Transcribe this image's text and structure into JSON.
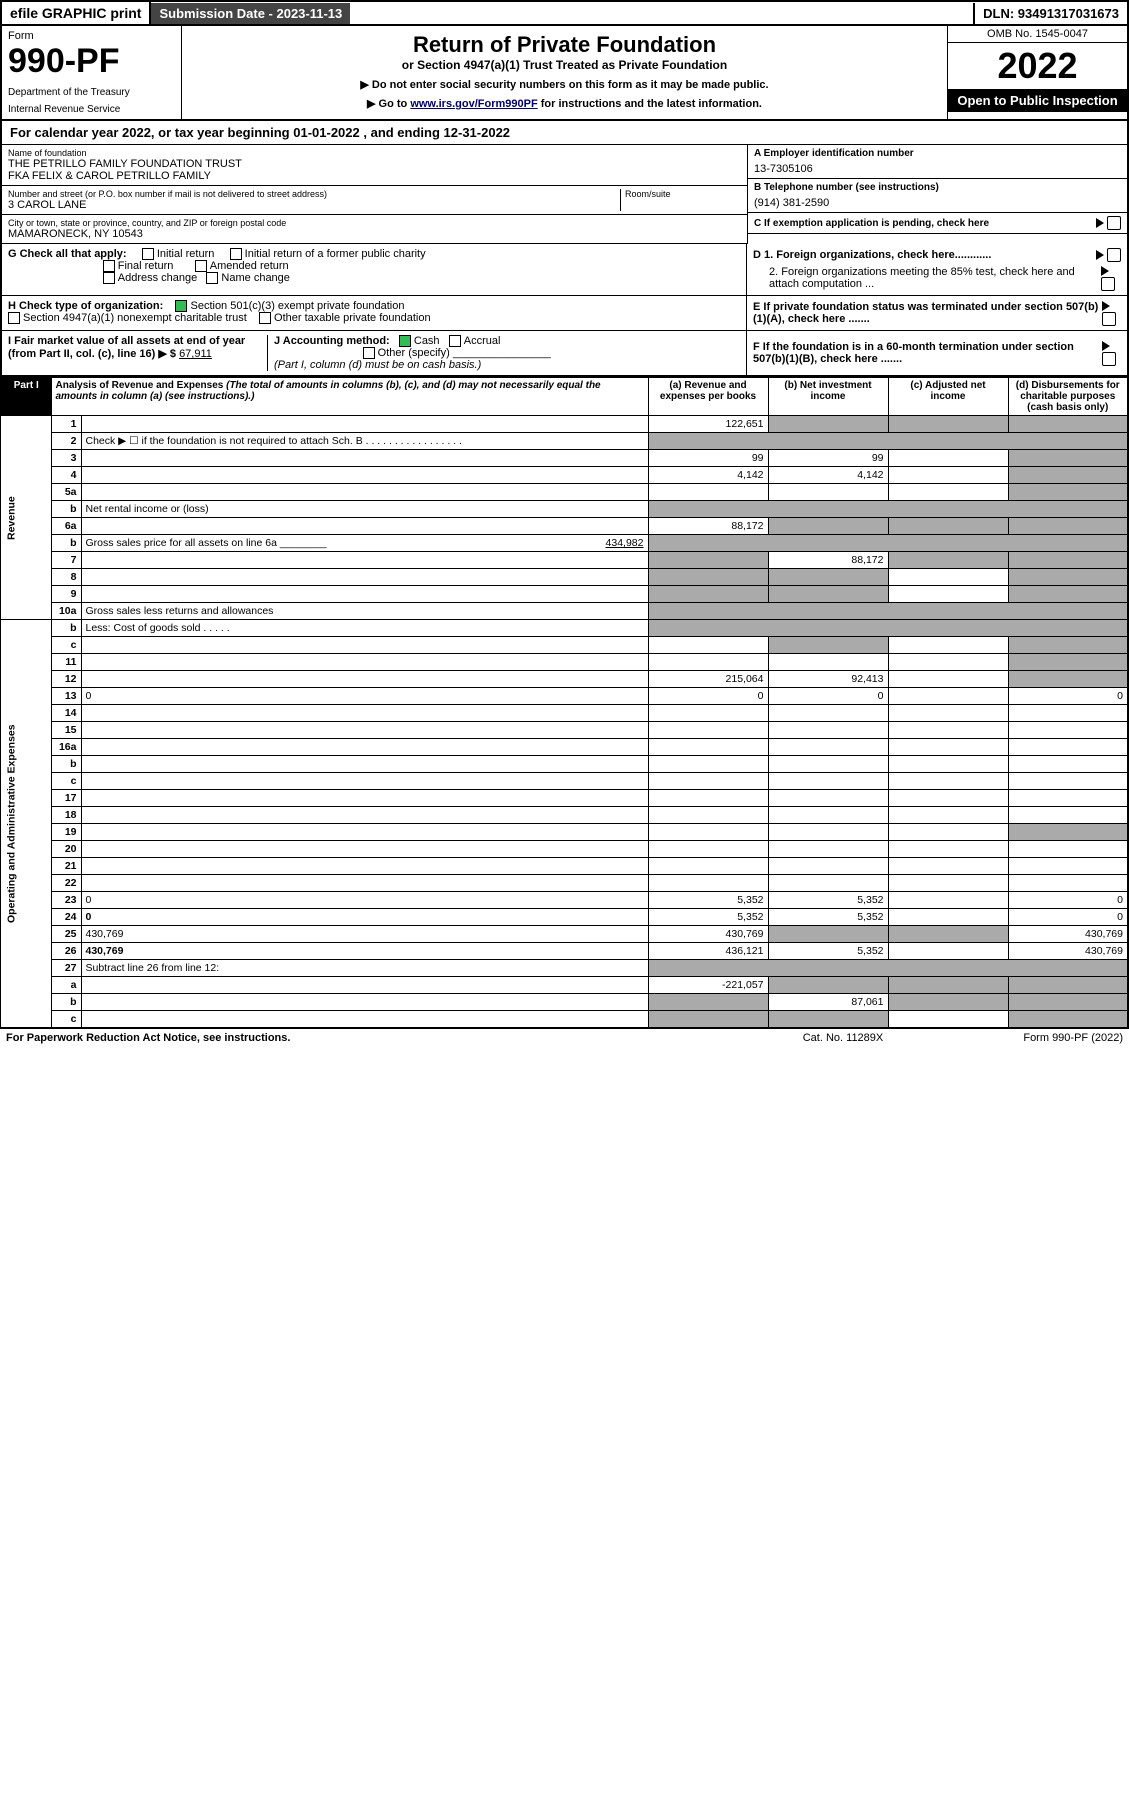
{
  "topbar": {
    "efile": "efile GRAPHIC print",
    "subdate_label": "Submission Date - 2023-11-13",
    "dln": "DLN: 93491317031673"
  },
  "header": {
    "form_word": "Form",
    "form_no": "990-PF",
    "dept1": "Department of the Treasury",
    "dept2": "Internal Revenue Service",
    "title": "Return of Private Foundation",
    "subtitle": "or Section 4947(a)(1) Trust Treated as Private Foundation",
    "note1": "▶ Do not enter social security numbers on this form as it may be made public.",
    "note2_pre": "▶ Go to ",
    "note2_link": "www.irs.gov/Form990PF",
    "note2_post": " for instructions and the latest information.",
    "omb": "OMB No. 1545-0047",
    "year": "2022",
    "open": "Open to Public Inspection"
  },
  "calyear": {
    "pre": "For calendar year 2022, or tax year beginning ",
    "begin": "01-01-2022",
    "mid": " , and ending ",
    "end": "12-31-2022"
  },
  "id": {
    "name_lbl": "Name of foundation",
    "name1": "THE PETRILLO FAMILY FOUNDATION TRUST",
    "name2": "FKA FELIX & CAROL PETRILLO FAMILY",
    "addr_lbl": "Number and street (or P.O. box number if mail is not delivered to street address)",
    "addr": "3 CAROL LANE",
    "room_lbl": "Room/suite",
    "city_lbl": "City or town, state or province, country, and ZIP or foreign postal code",
    "city": "MAMARONECK, NY  10543",
    "a_lbl": "A Employer identification number",
    "a_val": "13-7305106",
    "b_lbl": "B Telephone number (see instructions)",
    "b_val": "(914) 381-2590",
    "c_lbl": "C If exemption application is pending, check here"
  },
  "g": {
    "lbl": "G Check all that apply:",
    "o1": "Initial return",
    "o2": "Initial return of a former public charity",
    "o3": "Final return",
    "o4": "Amended return",
    "o5": "Address change",
    "o6": "Name change"
  },
  "d": {
    "d1": "D 1. Foreign organizations, check here............",
    "d2": "2. Foreign organizations meeting the 85% test, check here and attach computation ..."
  },
  "h": {
    "lbl": "H Check type of organization:",
    "o1": "Section 501(c)(3) exempt private foundation",
    "o2": "Section 4947(a)(1) nonexempt charitable trust",
    "o3": "Other taxable private foundation"
  },
  "e": {
    "lbl": "E  If private foundation status was terminated under section 507(b)(1)(A), check here ......."
  },
  "i": {
    "lbl": "I Fair market value of all assets at end of year (from Part II, col. (c), line 16) ▶ $",
    "val": "67,911"
  },
  "j": {
    "lbl": "J Accounting method:",
    "o1": "Cash",
    "o2": "Accrual",
    "o3": "Other (specify)",
    "note": "(Part I, column (d) must be on cash basis.)"
  },
  "f": {
    "lbl": "F  If the foundation is in a 60-month termination under section 507(b)(1)(B), check here ......."
  },
  "part1": {
    "tag": "Part I",
    "title": "Analysis of Revenue and Expenses",
    "titlepar": " (The total of amounts in columns (b), (c), and (d) may not necessarily equal the amounts in column (a) (see instructions).)",
    "cols": {
      "a": "(a)   Revenue and expenses per books",
      "b": "(b)   Net investment income",
      "c": "(c)   Adjusted net income",
      "d": "(d)   Disbursements for charitable purposes (cash basis only)"
    }
  },
  "sidelabels": {
    "rev": "Revenue",
    "exp": "Operating and Administrative Expenses"
  },
  "rows": [
    {
      "n": "1",
      "d": "",
      "a": "122,651",
      "b": "",
      "c": "",
      "shade_bcd": true
    },
    {
      "n": "2",
      "d": "Check ▶ ☐ if the foundation is not required to attach Sch. B  . . . . . . . . . . . . . . . . .",
      "noval": true
    },
    {
      "n": "3",
      "d": "",
      "a": "99",
      "b": "99",
      "c": "",
      "shade_d": true
    },
    {
      "n": "4",
      "d": "",
      "a": "4,142",
      "b": "4,142",
      "c": "",
      "shade_d": true
    },
    {
      "n": "5a",
      "d": "",
      "a": "",
      "b": "",
      "c": "",
      "shade_d": true
    },
    {
      "n": "b",
      "d": "Net rental income or (loss)  ",
      "noval": true,
      "inline": true
    },
    {
      "n": "6a",
      "d": "",
      "a": "88,172",
      "b": "",
      "c": "",
      "shade_bcd": true
    },
    {
      "n": "b",
      "d": "Gross sales price for all assets on line 6a ________",
      "inline": true,
      "inline_val": "434,982",
      "noval": true
    },
    {
      "n": "7",
      "d": "",
      "a": "",
      "b": "88,172",
      "c": "",
      "shade_a": true,
      "shade_cd": true
    },
    {
      "n": "8",
      "d": "",
      "a": "",
      "b": "",
      "c": "",
      "shade_ab": true,
      "shade_d": true
    },
    {
      "n": "9",
      "d": "",
      "a": "",
      "b": "",
      "c": "",
      "shade_ab": true,
      "shade_d": true
    },
    {
      "n": "10a",
      "d": "Gross sales less returns and allowances",
      "inline": true,
      "noval": true
    },
    {
      "n": "b",
      "d": "Less: Cost of goods sold  . . . . .",
      "inline": true,
      "noval": true
    },
    {
      "n": "c",
      "d": "",
      "a": "",
      "b": "",
      "c": "",
      "shade_b": true,
      "shade_d": true
    },
    {
      "n": "11",
      "d": "",
      "a": "",
      "b": "",
      "c": "",
      "shade_d": true
    },
    {
      "n": "12",
      "d": "",
      "a": "215,064",
      "b": "92,413",
      "c": "",
      "bold": true,
      "shade_d": true
    },
    {
      "n": "13",
      "d": "0",
      "a": "0",
      "b": "0",
      "c": ""
    },
    {
      "n": "14",
      "d": "",
      "a": "",
      "b": "",
      "c": ""
    },
    {
      "n": "15",
      "d": "",
      "a": "",
      "b": "",
      "c": ""
    },
    {
      "n": "16a",
      "d": "",
      "a": "",
      "b": "",
      "c": ""
    },
    {
      "n": "b",
      "d": "",
      "a": "",
      "b": "",
      "c": ""
    },
    {
      "n": "c",
      "d": "",
      "a": "",
      "b": "",
      "c": ""
    },
    {
      "n": "17",
      "d": "",
      "a": "",
      "b": "",
      "c": ""
    },
    {
      "n": "18",
      "d": "",
      "a": "",
      "b": "",
      "c": ""
    },
    {
      "n": "19",
      "d": "",
      "a": "",
      "b": "",
      "c": "",
      "shade_d": true
    },
    {
      "n": "20",
      "d": "",
      "a": "",
      "b": "",
      "c": ""
    },
    {
      "n": "21",
      "d": "",
      "a": "",
      "b": "",
      "c": ""
    },
    {
      "n": "22",
      "d": "",
      "a": "",
      "b": "",
      "c": ""
    },
    {
      "n": "23",
      "d": "0",
      "a": "5,352",
      "b": "5,352",
      "c": ""
    },
    {
      "n": "24",
      "d": "0",
      "a": "5,352",
      "b": "5,352",
      "c": "",
      "bold": true
    },
    {
      "n": "25",
      "d": "430,769",
      "a": "430,769",
      "b": "",
      "c": "",
      "shade_bc": true
    },
    {
      "n": "26",
      "d": "430,769",
      "a": "436,121",
      "b": "5,352",
      "c": "",
      "bold": true
    },
    {
      "n": "27",
      "d": "Subtract line 26 from line 12:",
      "noval": true
    },
    {
      "n": "a",
      "d": "",
      "a": "-221,057",
      "b": "",
      "c": "",
      "bold": true,
      "shade_bcd": true
    },
    {
      "n": "b",
      "d": "",
      "a": "",
      "b": "87,061",
      "c": "",
      "bold": true,
      "shade_a": true,
      "shade_cd": true
    },
    {
      "n": "c",
      "d": "",
      "a": "",
      "b": "",
      "c": "",
      "bold": true,
      "shade_ab": true,
      "shade_d": true
    }
  ],
  "footer": {
    "l": "For Paperwork Reduction Act Notice, see instructions.",
    "m": "Cat. No. 11289X",
    "r": "Form 990-PF (2022)"
  }
}
